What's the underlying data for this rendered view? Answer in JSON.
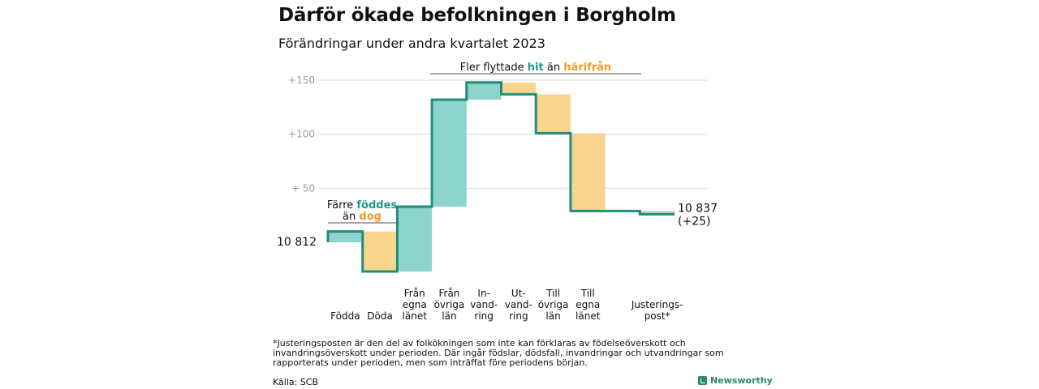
{
  "title": "Därför ökade befolkningen i Borgholm",
  "subtitle": "Förändringar under andra kvartalet 2023",
  "chart_data": {
    "type": "waterfall",
    "start_label": "10  812",
    "end_label_1": "10 837",
    "end_label_2": "(+25)",
    "start_value": 0,
    "steps": [
      {
        "label": [
          "",
          "",
          "Födda"
        ],
        "delta": 10,
        "kind": "increase"
      },
      {
        "label": [
          "",
          "",
          "Döda"
        ],
        "delta": -37,
        "kind": "decrease"
      },
      {
        "label": [
          "Från",
          "egna",
          "länet"
        ],
        "delta": 60,
        "kind": "increase"
      },
      {
        "label": [
          "Från",
          "övriga",
          "län"
        ],
        "delta": 99,
        "kind": "increase"
      },
      {
        "label": [
          "In-",
          "vand-",
          "ring"
        ],
        "delta": 16,
        "kind": "increase"
      },
      {
        "label": [
          "Ut-",
          "vand-",
          "ring"
        ],
        "delta": -11,
        "kind": "decrease"
      },
      {
        "label": [
          "Till",
          "övriga",
          "län"
        ],
        "delta": -36,
        "kind": "decrease"
      },
      {
        "label": [
          "Till",
          "egna",
          "länet"
        ],
        "delta": -72,
        "kind": "decrease"
      },
      {
        "label": [
          "",
          "",
          ""
        ],
        "delta": 0,
        "kind": "gap"
      },
      {
        "label": [
          "",
          "Justerings-",
          "post*"
        ],
        "delta": -3,
        "kind": "adjust"
      }
    ],
    "y_ticks": [
      {
        "value": 150,
        "label": "+150"
      },
      {
        "value": 100,
        "label": "+100"
      },
      {
        "value": 50,
        "label": "+  50"
      }
    ],
    "ylim": [
      -40,
      160
    ],
    "annotation_left": {
      "line1": "Färre ",
      "hl1": "föddes",
      "line2": "än ",
      "hl2": "dog"
    },
    "annotation_top": {
      "pre": "Fler flyttade ",
      "hl1": "hit",
      "mid": "  än ",
      "hl2": "härifrån"
    },
    "colors": {
      "increase": "#8dd5cc",
      "decrease": "#fad58e",
      "adjust": "#c9cdc9",
      "line": "#1f8f7c",
      "grid": "#dcdcdc",
      "teal_text": "#1f9a86",
      "orange_text": "#f29a1e"
    }
  },
  "footnote": "*Justeringsposten är den del av folkökningen som inte kan förklaras av födelseöverskott och invandringsöverskott under perioden. Där ingår födslar, dödsfall, invandringar och utvandringar som rapporterats under perioden, men som inträffat före periodens början.",
  "source": "Källa: SCB",
  "brand": "Newsworthy"
}
